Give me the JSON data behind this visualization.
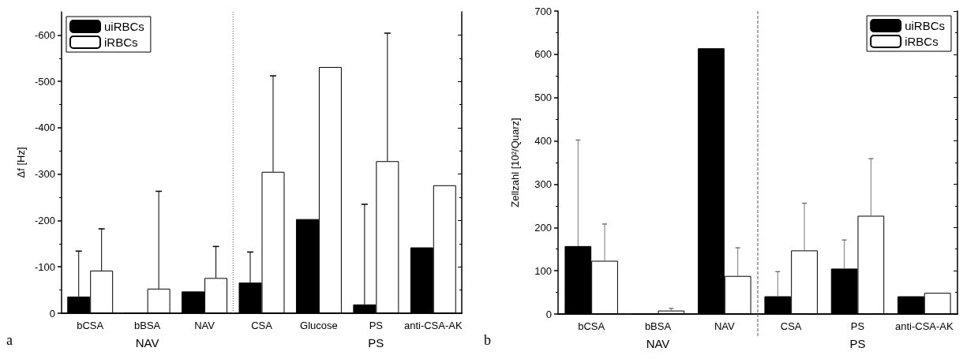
{
  "chart_data": [
    {
      "type": "bar",
      "ylabel": "Δf [Hz]",
      "categories": [
        "bCSA",
        "bBSA",
        "NAV",
        "CSA",
        "Glucose",
        "PS",
        "anti-CSA-AK"
      ],
      "series": [
        {
          "name": "uiRBCs",
          "color": "#000000",
          "values": [
            -36,
            0,
            -47,
            -66,
            -203,
            -19,
            -142
          ],
          "errors": [
            [
              -134,
              -36
            ],
            null,
            null,
            [
              -132,
              -66
            ],
            null,
            [
              -235,
              -19
            ],
            null
          ]
        },
        {
          "name": "iRBCs",
          "color": "#ffffff",
          "values": [
            -92,
            -53,
            -76,
            -305,
            -531,
            -328,
            -276
          ],
          "errors": [
            [
              -182,
              -92
            ],
            [
              -263,
              -53
            ],
            [
              -144,
              -76
            ],
            [
              -512,
              -305
            ],
            null,
            [
              -604,
              -328
            ],
            null
          ]
        }
      ],
      "ylim": [
        0,
        -650
      ],
      "yticks": [
        0,
        -100,
        -200,
        -300,
        -400,
        -500,
        -600
      ],
      "legend": "top left",
      "annotations": [
        "NAV",
        "PS",
        "a"
      ]
    },
    {
      "type": "bar",
      "ylabel": "Zellzahl [10²/Quarz]",
      "categories": [
        "bCSA",
        "bBSA",
        "NAV",
        "CSA",
        "PS",
        "anti-CSA-AK"
      ],
      "series": [
        {
          "name": "uiRBCs",
          "color": "#000000",
          "values": [
            157,
            0,
            614,
            41,
            105,
            41
          ],
          "errors": [
            [
              157,
              402
            ],
            null,
            null,
            [
              41,
              98
            ],
            [
              105,
              171
            ],
            null
          ]
        },
        {
          "name": "iRBCs",
          "color": "#ffffff",
          "values": [
            123,
            8,
            88,
            147,
            227,
            49
          ],
          "errors": [
            [
              123,
              208
            ],
            [
              8,
              13
            ],
            [
              88,
              153
            ],
            [
              147,
              256
            ],
            [
              227,
              359
            ],
            null
          ]
        }
      ],
      "ylim": [
        0,
        700
      ],
      "yticks": [
        0,
        100,
        200,
        300,
        400,
        500,
        600,
        700
      ],
      "legend": "top right",
      "annotations": [
        "NAV",
        "PS",
        "b"
      ]
    }
  ]
}
